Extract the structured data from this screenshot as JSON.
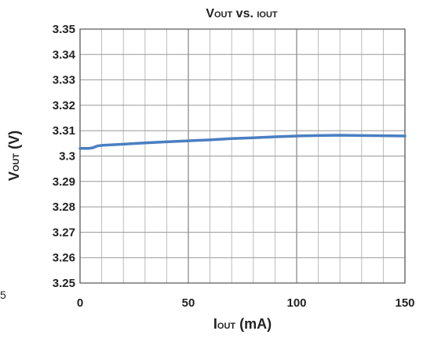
{
  "stray_mark": "5",
  "chart_data": {
    "type": "line",
    "title": {
      "main": "V",
      "sub": "OUT",
      "mid": " vs. ",
      "sub2": "IOUT"
    },
    "xlabel": {
      "main": "I",
      "sub": "OUT",
      "rest": " (mA)"
    },
    "ylabel": {
      "main": "V",
      "sub": "OUT",
      "rest": " (V)"
    },
    "xlim": [
      0,
      150
    ],
    "ylim": [
      3.25,
      3.35
    ],
    "x_ticks": [
      "0",
      "50",
      "100",
      "150"
    ],
    "y_ticks": [
      "3.35",
      "3.34",
      "3.33",
      "3.32",
      "3.31",
      "3.3",
      "3.29",
      "3.28",
      "3.27",
      "3.26",
      "3.25"
    ],
    "grid": true,
    "series": [
      {
        "color": "#4a7fc1",
        "x": [
          0,
          2,
          4,
          6,
          8,
          10,
          20,
          30,
          40,
          50,
          60,
          70,
          80,
          90,
          100,
          110,
          120,
          130,
          140,
          150
        ],
        "y": [
          3.303,
          3.303,
          3.303,
          3.3033,
          3.304,
          3.3042,
          3.3047,
          3.3052,
          3.3056,
          3.306,
          3.3064,
          3.3069,
          3.3072,
          3.3076,
          3.3079,
          3.3081,
          3.3082,
          3.3081,
          3.308,
          3.3079
        ]
      }
    ]
  }
}
